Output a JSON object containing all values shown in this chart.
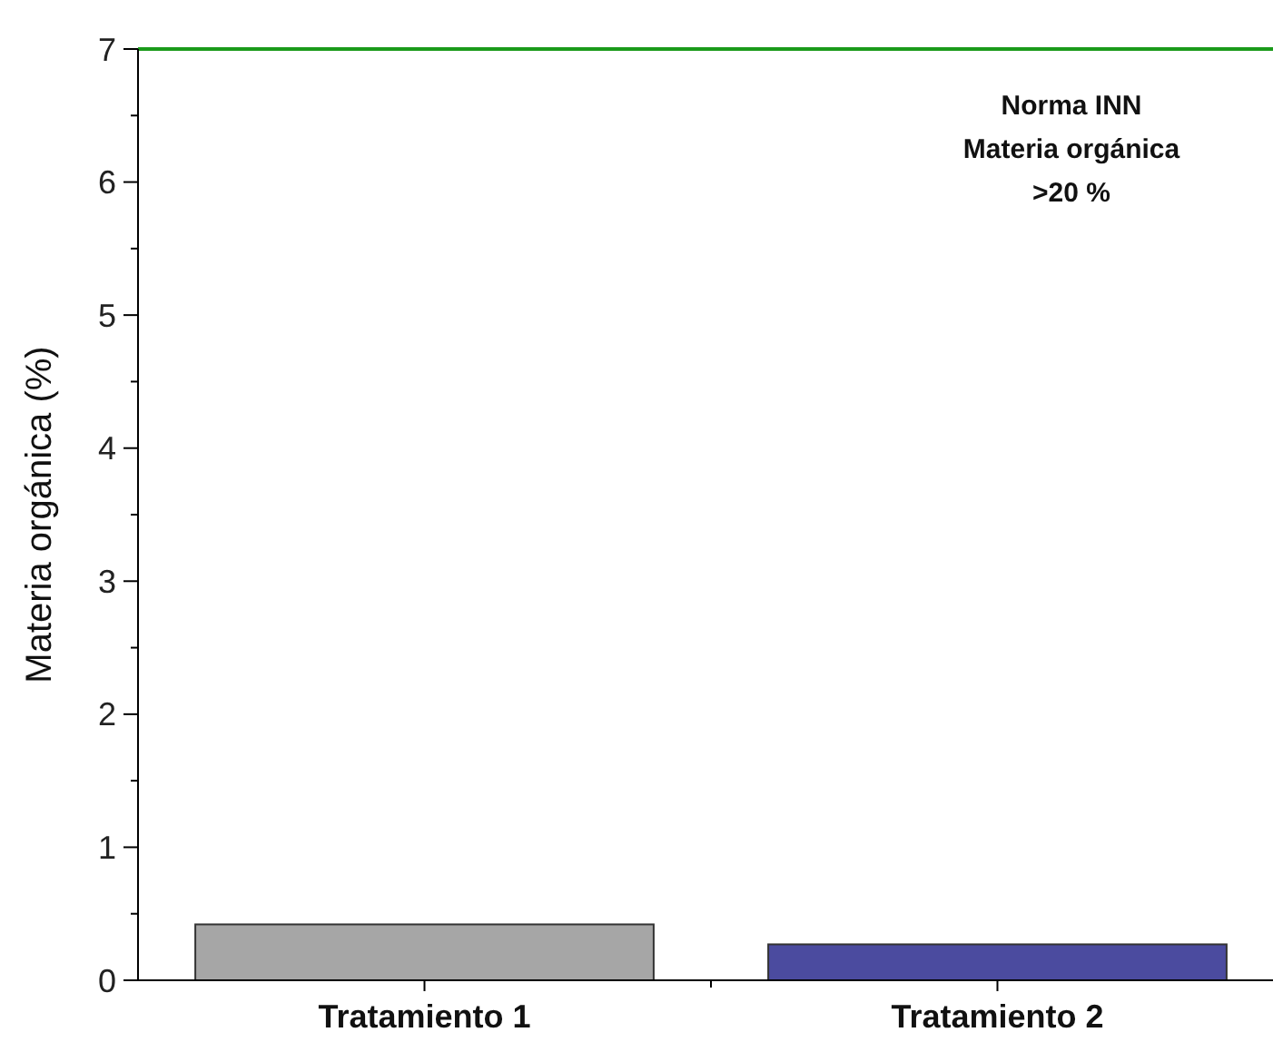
{
  "chart_data": {
    "type": "bar",
    "ylabel": "Materia orgánica (%)",
    "categories": [
      "Tratamiento 1",
      "Tratamiento 2"
    ],
    "values": [
      0.42,
      0.27
    ],
    "colors": [
      "#a6a6a6",
      "#4b4b9f"
    ],
    "ylim": [
      0,
      7
    ],
    "yticks": [
      0,
      {
        "value": 0.5,
        "label": null
      },
      1,
      {
        "value": 1.5,
        "label": null
      },
      2,
      {
        "value": 2.5,
        "label": null
      },
      3,
      {
        "value": 3.5,
        "label": null
      },
      4,
      {
        "value": 4.5,
        "label": null
      },
      5,
      {
        "value": 5.5,
        "label": null
      },
      6,
      {
        "value": 6.5,
        "label": null
      },
      7
    ],
    "ref_lines": [
      {
        "axis": "y",
        "value": 7,
        "color": "#1a9a1a"
      }
    ],
    "annotations": [
      "Norma INN\nMateria orgánica\n>20 %"
    ],
    "grid": false
  }
}
